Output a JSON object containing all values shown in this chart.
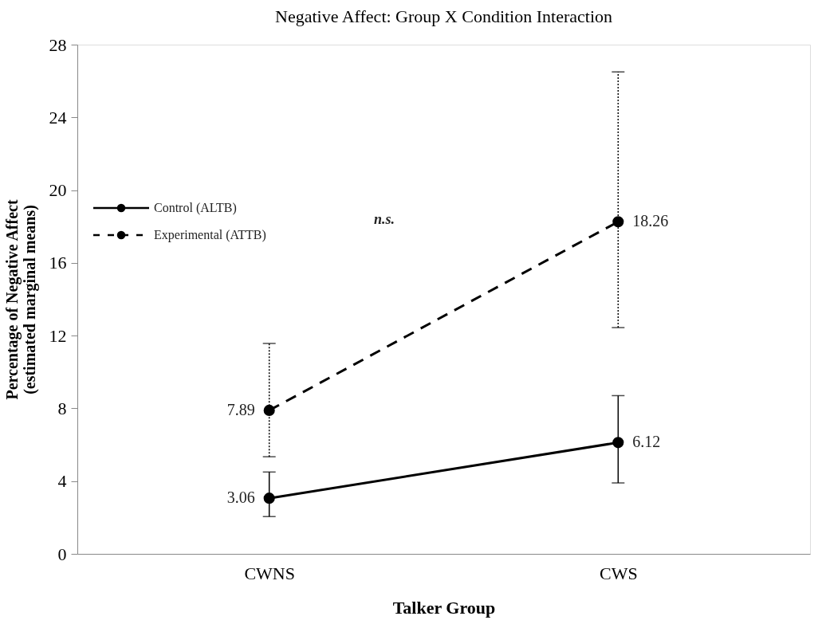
{
  "chart_data": {
    "type": "line",
    "title": "Negative Affect: Group X Condition Interaction",
    "xlabel": "Talker Group",
    "ylabel": "Percentage of Negative Affect\n(estimated marginal means)",
    "categories": [
      "CWNS",
      "CWS"
    ],
    "series": [
      {
        "name": "Control (ALTB)",
        "color": "#000000",
        "line_style": "solid",
        "values": [
          3.06,
          6.12
        ],
        "errors": [
          [
            2.05,
            4.5
          ],
          [
            3.9,
            8.7
          ]
        ]
      },
      {
        "name": "Experimental (ATTB)",
        "color": "#000000",
        "line_style": "dashed",
        "values": [
          7.89,
          18.26
        ],
        "errors": [
          [
            5.34,
            11.57
          ],
          [
            12.44,
            26.5
          ]
        ]
      }
    ],
    "ylim": [
      0,
      28
    ],
    "yticks": [
      0,
      4,
      8,
      12,
      16,
      20,
      24,
      28
    ],
    "grid": false,
    "legend": "top left",
    "marker": "circle",
    "data_labels": true,
    "annotations": [
      "n.s."
    ]
  }
}
